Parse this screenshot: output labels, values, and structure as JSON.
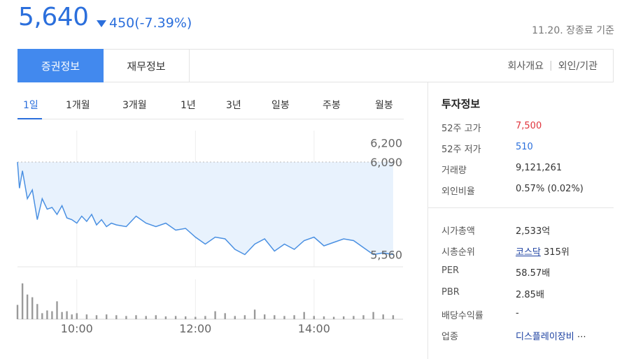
{
  "header": {
    "price": "5,640",
    "change": "450(-7.39%)",
    "base_time": "11.20. 장종료 기준"
  },
  "tabs": {
    "main": [
      "증권정보",
      "재무정보"
    ],
    "right": [
      "회사개요",
      "외인/기관"
    ]
  },
  "periods": [
    "1일",
    "1개월",
    "3개월",
    "1년",
    "3년",
    "일봉",
    "주봉",
    "월봉"
  ],
  "colors": {
    "accent": "#4289ee",
    "down": "#2b6fdc",
    "up": "#e0343c",
    "line": "#4a90e2",
    "fill": "#e8f2fd"
  },
  "chart_data": {
    "type": "line",
    "y_ticks": [
      "6,200",
      "6,090",
      "5,560"
    ],
    "x_ticks": [
      "10:00",
      "12:00",
      "14:00"
    ],
    "x_domain": [
      "09:00",
      "15:30"
    ],
    "ylim": [
      5490,
      6270
    ],
    "reference": 6090,
    "price_series": {
      "x": [
        "09:00",
        "09:02",
        "09:05",
        "09:10",
        "09:15",
        "09:20",
        "09:25",
        "09:30",
        "09:35",
        "09:40",
        "09:45",
        "09:50",
        "09:55",
        "10:00",
        "10:05",
        "10:10",
        "10:15",
        "10:20",
        "10:25",
        "10:30",
        "10:35",
        "10:40",
        "10:50",
        "11:00",
        "11:10",
        "11:20",
        "11:30",
        "11:40",
        "11:50",
        "12:00",
        "12:10",
        "12:20",
        "12:30",
        "12:40",
        "12:50",
        "13:00",
        "13:10",
        "13:20",
        "13:30",
        "13:40",
        "13:50",
        "14:00",
        "14:10",
        "14:20",
        "14:30",
        "14:40",
        "14:50",
        "15:00",
        "15:10",
        "15:20"
      ],
      "y": [
        6090,
        5940,
        6040,
        5880,
        5930,
        5760,
        5880,
        5820,
        5830,
        5790,
        5840,
        5770,
        5760,
        5740,
        5780,
        5750,
        5790,
        5730,
        5760,
        5720,
        5740,
        5730,
        5720,
        5780,
        5740,
        5720,
        5740,
        5700,
        5710,
        5660,
        5620,
        5660,
        5650,
        5590,
        5560,
        5620,
        5650,
        5580,
        5620,
        5590,
        5640,
        5660,
        5610,
        5630,
        5650,
        5640,
        5600,
        5560,
        5570,
        5560
      ]
    },
    "volume": {
      "x": [
        "09:00",
        "09:05",
        "09:10",
        "09:15",
        "09:20",
        "09:25",
        "09:30",
        "09:35",
        "09:40",
        "09:45",
        "09:50",
        "09:55",
        "10:00",
        "10:10",
        "10:20",
        "10:30",
        "10:40",
        "10:50",
        "11:00",
        "11:10",
        "11:20",
        "11:30",
        "11:40",
        "11:50",
        "12:00",
        "12:10",
        "12:20",
        "12:30",
        "12:40",
        "12:50",
        "13:00",
        "13:10",
        "13:20",
        "13:30",
        "13:40",
        "13:50",
        "14:00",
        "14:10",
        "14:20",
        "14:30",
        "14:40",
        "14:50",
        "15:00",
        "15:10",
        "15:20"
      ],
      "v": [
        0.36,
        0.9,
        0.62,
        0.55,
        0.38,
        0.15,
        0.22,
        0.2,
        0.45,
        0.18,
        0.2,
        0.12,
        0.15,
        0.12,
        0.1,
        0.12,
        0.1,
        0.08,
        0.1,
        0.08,
        0.1,
        0.07,
        0.08,
        0.07,
        0.06,
        0.08,
        0.2,
        0.15,
        0.08,
        0.1,
        0.24,
        0.12,
        0.1,
        0.08,
        0.1,
        0.18,
        0.08,
        0.07,
        0.06,
        0.07,
        0.08,
        0.1,
        0.18,
        0.12,
        0.1
      ]
    }
  },
  "info": {
    "title": "투자정보",
    "rows1": [
      {
        "label": "52주 고가",
        "value": "7,500",
        "tone": "red"
      },
      {
        "label": "52주 저가",
        "value": "510",
        "tone": "blue"
      },
      {
        "label": "거래량",
        "value": "9,121,261",
        "tone": ""
      },
      {
        "label": "외인비율",
        "value": "0.57% (0.02%)",
        "tone": ""
      }
    ],
    "market_cap": {
      "label": "시가총액",
      "value": "2,533억"
    },
    "cap_rank": {
      "label": "시총순위",
      "market": "코스닥",
      "rank": "315위"
    },
    "per": {
      "label": "PER",
      "value": "58.57배"
    },
    "pbr": {
      "label": "PBR",
      "value": "2.85배"
    },
    "dividend": {
      "label": "배당수익률",
      "value": "-"
    },
    "sector": {
      "label": "업종",
      "value": "디스플레이장비",
      "more": "⋯"
    }
  }
}
